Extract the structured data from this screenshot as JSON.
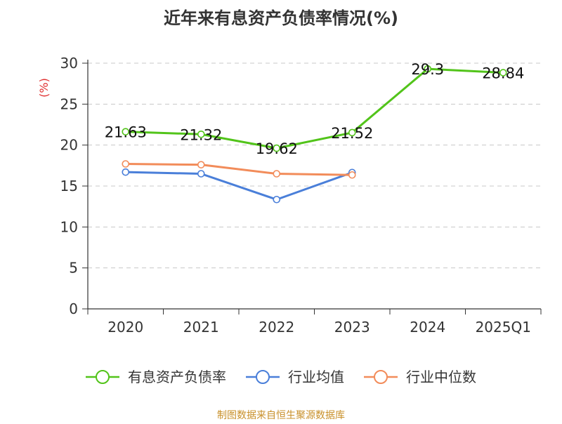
{
  "chart_data": {
    "type": "line",
    "title": "近年来有息资产负债率情况(%)",
    "ylabel": "(%)",
    "categories": [
      "2020",
      "2021",
      "2022",
      "2023",
      "2024",
      "2025Q1"
    ],
    "ylim": [
      0,
      30
    ],
    "yticks": [
      0,
      5,
      10,
      15,
      20,
      25,
      30
    ],
    "grid": true,
    "legend": "bottom",
    "series": [
      {
        "name": "有息资产负债率",
        "color": "#52c41a",
        "values": [
          21.63,
          21.32,
          19.62,
          21.52,
          29.3,
          28.84
        ],
        "labels": [
          "21.63",
          "21.32",
          "19.62",
          "21.52",
          "29.3",
          "28.84"
        ],
        "show_labels": true
      },
      {
        "name": "行业均值",
        "color": "#4a7fd9",
        "values": [
          16.7,
          16.5,
          13.35,
          16.65,
          null,
          null
        ],
        "show_labels": false
      },
      {
        "name": "行业中位数",
        "color": "#f28c5a",
        "values": [
          17.7,
          17.6,
          16.5,
          16.35,
          null,
          null
        ],
        "show_labels": false
      }
    ]
  },
  "footer": {
    "source": "制图数据来自恒生聚源数据库"
  },
  "colors": {
    "title": "#333333",
    "axis_label": "#e03030",
    "axis": "#333333",
    "grid": "#c8c8c8",
    "footer": "#c8902a"
  }
}
